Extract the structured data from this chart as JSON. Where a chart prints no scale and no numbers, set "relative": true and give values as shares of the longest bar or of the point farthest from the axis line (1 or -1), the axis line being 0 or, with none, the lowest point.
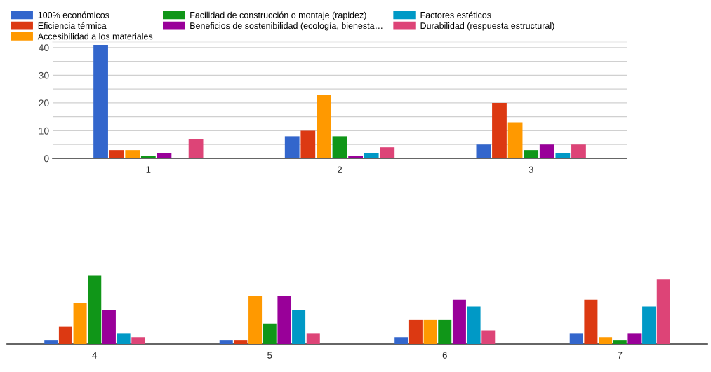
{
  "chart_data": [
    {
      "type": "bar",
      "categories": [
        "1",
        "2",
        "3"
      ],
      "ylim": [
        0,
        42
      ],
      "yticks": [
        0,
        {
          "value": 5,
          "label": null
        },
        10,
        {
          "value": 15,
          "label": null
        },
        20,
        {
          "value": 25,
          "label": null
        },
        30,
        {
          "value": 35,
          "label": null
        },
        40
      ],
      "grid": "y",
      "legend": "top",
      "series": [
        {
          "name": "100% económicos",
          "color": "#3366cc",
          "values": [
            41,
            8,
            5
          ]
        },
        {
          "name": "Eficiencia térmica",
          "color": "#dc3912",
          "values": [
            3,
            10,
            20
          ]
        },
        {
          "name": "Accesibilidad a los materiales",
          "color": "#ff9900",
          "values": [
            3,
            23,
            13
          ]
        },
        {
          "name": "Facilidad de construcción o montaje (rapidez)",
          "color": "#109618",
          "values": [
            1,
            8,
            3
          ]
        },
        {
          "name": "Beneficios de sostenibilidad (ecología, bienesta…",
          "color": "#990099",
          "values": [
            2,
            1,
            5
          ]
        },
        {
          "name": "Factores estéticos",
          "color": "#0099c6",
          "values": [
            0,
            2,
            2
          ]
        },
        {
          "name": "Durabilidad (respuesta estructural)",
          "color": "#dd4477",
          "values": [
            7,
            4,
            5
          ]
        }
      ]
    },
    {
      "type": "bar",
      "categories": [
        "4",
        "5",
        "6",
        "7"
      ],
      "relative": true,
      "series": [
        {
          "color": "#3366cc",
          "values": [
            0.05,
            0.05,
            0.1,
            0.15
          ]
        },
        {
          "color": "#dc3912",
          "values": [
            0.25,
            0.05,
            0.35,
            0.65
          ]
        },
        {
          "color": "#ff9900",
          "values": [
            0.6,
            0.7,
            0.35,
            0.1
          ]
        },
        {
          "color": "#109618",
          "values": [
            1,
            0.3,
            0.35,
            0.05
          ]
        },
        {
          "color": "#990099",
          "values": [
            0.5,
            0.7,
            0.65,
            0.15
          ]
        },
        {
          "color": "#0099c6",
          "values": [
            0.15,
            0.5,
            0.55,
            0.55
          ]
        },
        {
          "color": "#dd4477",
          "values": [
            0.1,
            0.15,
            0.2,
            0.95
          ]
        }
      ]
    }
  ]
}
